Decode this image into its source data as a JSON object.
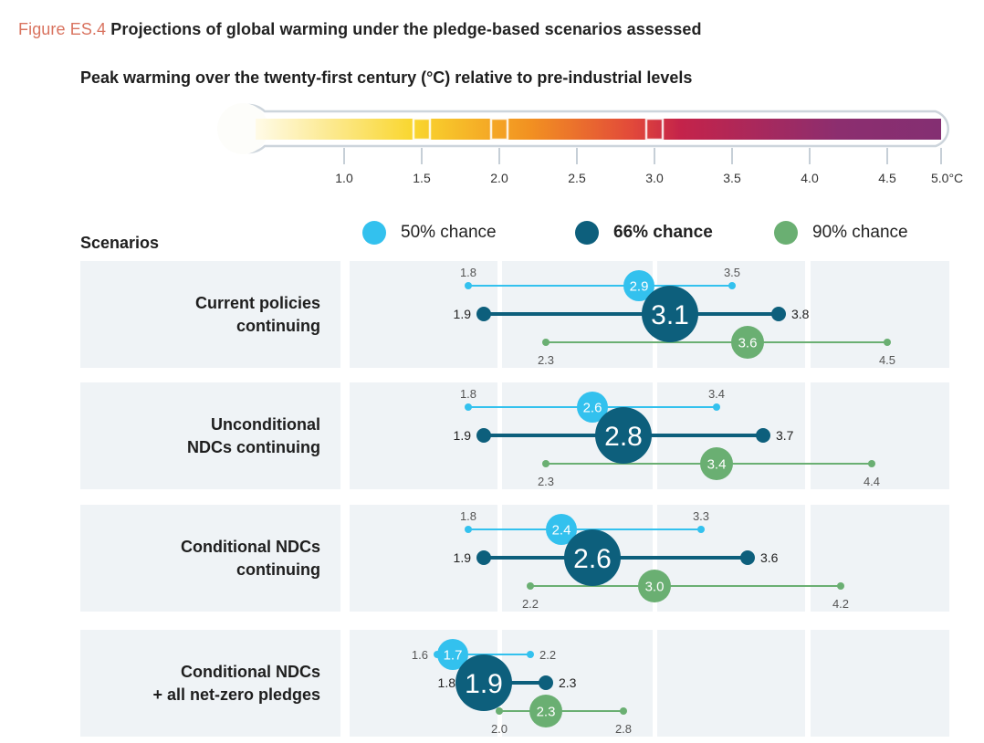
{
  "figure": {
    "number": "Figure ES.4",
    "title": "Projections of global warming under the pledge-based scenarios assessed"
  },
  "chart_data": {
    "type": "dot-range",
    "title": "Peak warming over the twenty-first century (°C) relative to pre-industrial levels",
    "xlabel": "°C",
    "xlim": [
      1.0,
      5.0
    ],
    "ticks": [
      "1.0",
      "1.5",
      "2.0",
      "2.5",
      "3.0",
      "3.5",
      "4.0",
      "4.5",
      "5.0°C"
    ],
    "tick_values": [
      1.0,
      1.5,
      2.0,
      2.5,
      3.0,
      3.5,
      4.0,
      4.5,
      5.0
    ],
    "thermometer_markers": [
      1.5,
      2.0,
      3.0
    ],
    "scale_colors": [
      "#fffbe8",
      "#f9d62e",
      "#f29121",
      "#e2493a",
      "#c4234a",
      "#8c2e6f",
      "#842f72"
    ],
    "categories_header": "Scenarios",
    "legend": [
      {
        "name": "50% chance",
        "color": "#33c1ee",
        "bold": false
      },
      {
        "name": "66% chance",
        "color": "#0d5f7c",
        "bold": true
      },
      {
        "name": "90% chance",
        "color": "#6aaf72",
        "bold": false
      }
    ],
    "scenarios": [
      {
        "name": "Current policies\ncontinuing",
        "series": [
          {
            "chance": "50%",
            "central": 2.9,
            "low": 1.8,
            "high": 3.5
          },
          {
            "chance": "66%",
            "central": 3.1,
            "low": 1.9,
            "high": 3.8
          },
          {
            "chance": "90%",
            "central": 3.6,
            "low": 2.3,
            "high": 4.5
          }
        ]
      },
      {
        "name": "Unconditional\nNDCs continuing",
        "series": [
          {
            "chance": "50%",
            "central": 2.6,
            "low": 1.8,
            "high": 3.4
          },
          {
            "chance": "66%",
            "central": 2.8,
            "low": 1.9,
            "high": 3.7
          },
          {
            "chance": "90%",
            "central": 3.4,
            "low": 2.3,
            "high": 4.4
          }
        ]
      },
      {
        "name": "Conditional NDCs\ncontinuing",
        "series": [
          {
            "chance": "50%",
            "central": 2.4,
            "low": 1.8,
            "high": 3.3
          },
          {
            "chance": "66%",
            "central": 2.6,
            "low": 1.9,
            "high": 3.6
          },
          {
            "chance": "90%",
            "central": 3.0,
            "low": 2.2,
            "high": 4.2
          }
        ]
      },
      {
        "name": "Conditional NDCs\n+ all net-zero pledges",
        "series": [
          {
            "chance": "50%",
            "central": 1.7,
            "low": 1.6,
            "high": 2.2
          },
          {
            "chance": "66%",
            "central": 1.9,
            "low": 1.8,
            "high": 2.3
          },
          {
            "chance": "90%",
            "central": 2.3,
            "low": 2.0,
            "high": 2.8
          }
        ]
      }
    ]
  }
}
